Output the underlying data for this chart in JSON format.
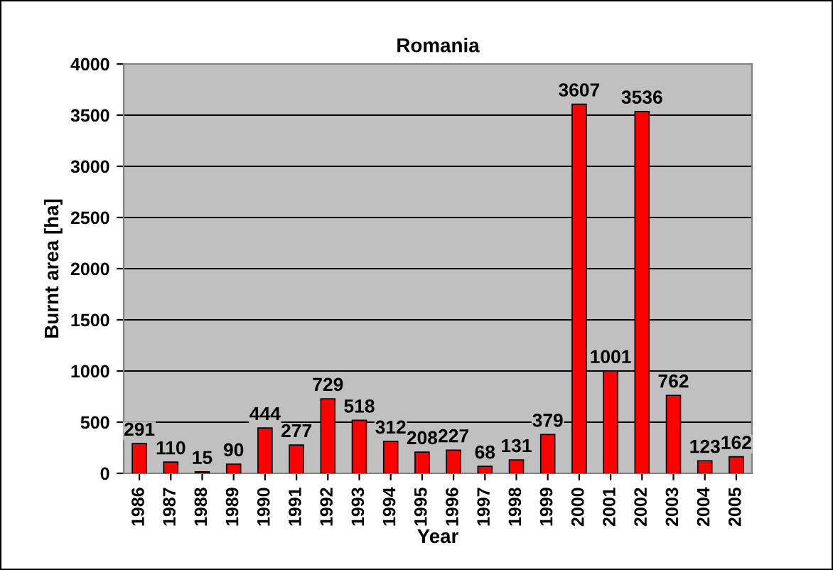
{
  "chart_data": {
    "type": "bar",
    "title": "Romania",
    "xlabel": "Year",
    "ylabel": "Burnt area [ha]",
    "categories": [
      "1986",
      "1987",
      "1988",
      "1989",
      "1990",
      "1991",
      "1992",
      "1993",
      "1994",
      "1995",
      "1996",
      "1997",
      "1998",
      "1999",
      "2000",
      "2001",
      "2002",
      "2003",
      "2004",
      "2005"
    ],
    "values": [
      291,
      110,
      15,
      90,
      444,
      277,
      729,
      518,
      312,
      208,
      227,
      68,
      131,
      379,
      3607,
      1001,
      3536,
      762,
      123,
      162
    ],
    "color": "#ff0000",
    "ylim": [
      0,
      4000
    ],
    "yticks": [
      0,
      500,
      1000,
      1500,
      2000,
      2500,
      3000,
      3500,
      4000
    ],
    "grid": "y",
    "data_labels": true
  }
}
